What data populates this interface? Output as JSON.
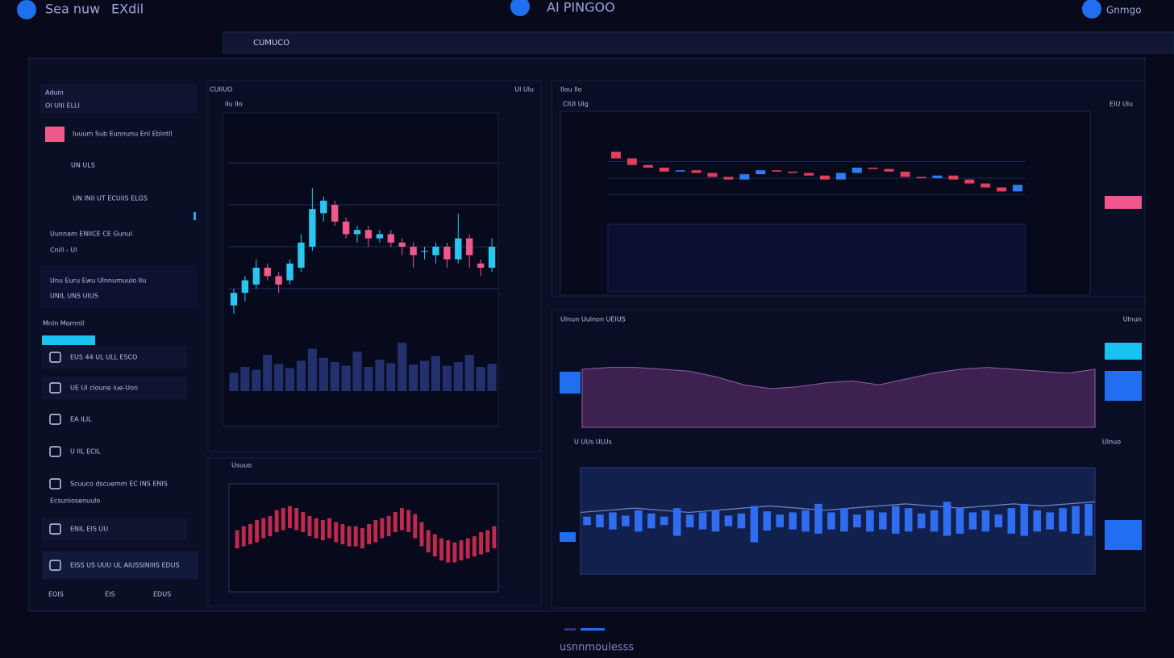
{
  "header": {
    "left": [
      "Sea nuw",
      "EXdil"
    ],
    "title": "AI PINGOO",
    "right": "Gnmgo",
    "tab": "CUMUCO"
  },
  "sidebar": {
    "heading": "Aduin",
    "lines": [
      "Ol UIII ELLI",
      "Iuuum Sub Eunnunu Enl Eblntll",
      "UN ULS",
      "UN INII UT ECUIIS ELGS",
      "Uunnam ENIICE CE Gunul",
      "Cnill - Ul",
      "Unu Euru Ewu Ulnnumuulo Ilu",
      "UNIL UNS UIUS"
    ],
    "section": "Mnln Mornnll",
    "items": [
      "EUS 44 UL ULL ESCO",
      "UE Ul cloune iue-Uon",
      "EA ILIL",
      "U IIL ECIL",
      "Scuuco dscuemm EC INS ENIS",
      "Ecsuniosenuulo",
      "ENIL EIS UU",
      "EISS US UUU UL AIUSSINIIIS EDUS"
    ],
    "footer": [
      "EOIS",
      "EIS",
      "EDUS"
    ]
  },
  "panels": [
    "CUIIUO",
    "Ilu Ilo",
    "Ul Ulu",
    "Usuuo",
    "Ilou Ilo",
    "CIUI Ulg",
    "EIU Ulu",
    "Ulnun Uulnon UEIUS",
    "Ulnun",
    "U UUs ULUs",
    "Ulnuo"
  ],
  "footer": "usnnmoulesss",
  "chart_data": [
    {
      "type": "candlestick",
      "up_color": "#29c6f0",
      "down_color": "#f0588c",
      "open": [
        12,
        18,
        22,
        30,
        26,
        24,
        30,
        40,
        56,
        60,
        52,
        46,
        48,
        44,
        46,
        42,
        40,
        38,
        36,
        40,
        34,
        44,
        32,
        30
      ],
      "close": [
        18,
        24,
        30,
        26,
        22,
        32,
        42,
        58,
        62,
        52,
        46,
        48,
        44,
        46,
        42,
        40,
        36,
        38,
        40,
        34,
        44,
        36,
        30,
        40
      ],
      "high": [
        20,
        26,
        34,
        32,
        28,
        34,
        46,
        68,
        64,
        62,
        54,
        50,
        50,
        48,
        48,
        44,
        42,
        40,
        42,
        42,
        56,
        46,
        34,
        44
      ],
      "low": [
        8,
        14,
        20,
        24,
        18,
        22,
        28,
        38,
        52,
        50,
        44,
        42,
        40,
        42,
        40,
        36,
        30,
        34,
        32,
        30,
        32,
        30,
        26,
        28
      ],
      "ylim": [
        0,
        100
      ],
      "yticks": [
        20,
        40,
        60,
        80
      ],
      "grid": true
    },
    {
      "type": "bar",
      "color": "#23306e",
      "values": [
        30,
        40,
        35,
        60,
        45,
        38,
        50,
        70,
        55,
        48,
        42,
        65,
        40,
        52,
        46,
        80,
        44,
        50,
        58,
        42,
        48,
        60,
        40,
        45
      ],
      "ylim": [
        0,
        100
      ]
    },
    {
      "type": "range-bar",
      "color": "#c0284e",
      "highs": [
        58,
        62,
        64,
        68,
        70,
        72,
        78,
        80,
        82,
        80,
        76,
        72,
        70,
        68,
        70,
        66,
        64,
        62,
        62,
        60,
        64,
        68,
        70,
        72,
        76,
        80,
        78,
        74,
        66,
        58,
        54,
        50,
        48,
        46,
        48,
        50,
        52,
        56,
        58,
        62
      ],
      "lows": [
        40,
        42,
        44,
        46,
        50,
        52,
        56,
        58,
        60,
        58,
        56,
        52,
        50,
        48,
        50,
        46,
        44,
        42,
        42,
        40,
        44,
        46,
        50,
        52,
        56,
        58,
        56,
        50,
        42,
        36,
        32,
        28,
        26,
        26,
        28,
        30,
        32,
        34,
        36,
        40
      ],
      "ylim": [
        0,
        100
      ]
    },
    {
      "type": "candlestick",
      "up_color": "#2f7cf0",
      "down_color": "#e0405a",
      "open": [
        90,
        80,
        70,
        66,
        60,
        62,
        58,
        52,
        48,
        56,
        62,
        60,
        58,
        54,
        48,
        58,
        66,
        64,
        60,
        52,
        50,
        54,
        48,
        42,
        36,
        30
      ],
      "close": [
        80,
        70,
        66,
        60,
        62,
        58,
        52,
        48,
        56,
        62,
        60,
        58,
        54,
        48,
        58,
        66,
        64,
        60,
        52,
        50,
        54,
        48,
        42,
        36,
        30,
        40
      ],
      "ylim": [
        0,
        100
      ],
      "yticks": [
        25,
        50,
        75
      ],
      "grid": true
    },
    {
      "type": "area",
      "color": "#7a3a8a",
      "values": [
        60,
        62,
        62,
        60,
        58,
        52,
        44,
        40,
        42,
        46,
        48,
        44,
        50,
        56,
        60,
        62,
        60,
        58,
        56,
        60
      ],
      "ylim": [
        0,
        100
      ]
    },
    {
      "type": "line",
      "color": "#6f86c8",
      "values": [
        58,
        60,
        62,
        60,
        58,
        60,
        62,
        64,
        62,
        60,
        62,
        64,
        66,
        64,
        62,
        64,
        66,
        64,
        66,
        68
      ],
      "ylim": [
        0,
        100
      ]
    },
    {
      "type": "range-bar",
      "color": "#2f6cf0",
      "highs": [
        54,
        56,
        58,
        55,
        60,
        57,
        54,
        62,
        56,
        58,
        60,
        55,
        57,
        64,
        59,
        56,
        58,
        60,
        66,
        58,
        62,
        56,
        60,
        58,
        64,
        62,
        57,
        60,
        68,
        62,
        58,
        60,
        56,
        62,
        66,
        60,
        58,
        62,
        64,
        66
      ],
      "lows": [
        46,
        44,
        42,
        45,
        40,
        43,
        46,
        36,
        44,
        42,
        40,
        45,
        43,
        30,
        41,
        44,
        42,
        40,
        38,
        42,
        40,
        44,
        40,
        42,
        38,
        40,
        43,
        40,
        36,
        38,
        42,
        40,
        44,
        38,
        36,
        40,
        42,
        40,
        38,
        36
      ],
      "ylim": [
        0,
        100
      ]
    }
  ]
}
